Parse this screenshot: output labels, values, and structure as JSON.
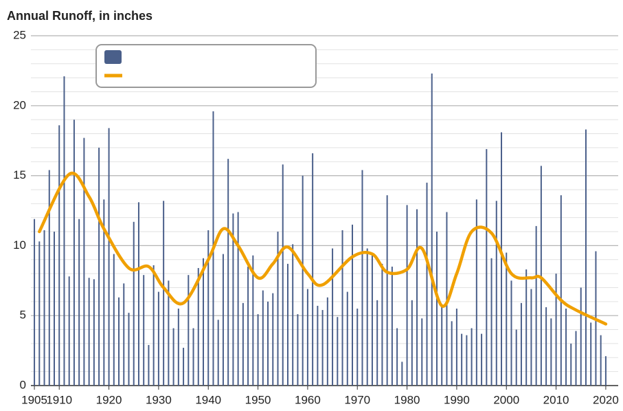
{
  "chart_data": {
    "type": "bar+line",
    "title": "Annual Runoff, in inches",
    "x": [
      1905,
      1906,
      1907,
      1908,
      1909,
      1910,
      1911,
      1912,
      1913,
      1914,
      1915,
      1916,
      1917,
      1918,
      1919,
      1920,
      1921,
      1922,
      1923,
      1924,
      1925,
      1926,
      1927,
      1928,
      1929,
      1930,
      1931,
      1932,
      1933,
      1934,
      1935,
      1936,
      1937,
      1938,
      1939,
      1940,
      1941,
      1942,
      1943,
      1944,
      1945,
      1946,
      1947,
      1948,
      1949,
      1950,
      1951,
      1952,
      1953,
      1954,
      1955,
      1956,
      1957,
      1958,
      1959,
      1960,
      1961,
      1962,
      1963,
      1964,
      1965,
      1966,
      1967,
      1968,
      1969,
      1970,
      1971,
      1972,
      1973,
      1974,
      1975,
      1976,
      1977,
      1978,
      1979,
      1980,
      1981,
      1982,
      1983,
      1984,
      1985,
      1986,
      1987,
      1988,
      1989,
      1990,
      1991,
      1992,
      1993,
      1994,
      1995,
      1996,
      1997,
      1998,
      1999,
      2000,
      2001,
      2002,
      2003,
      2004,
      2005,
      2006,
      2007,
      2008,
      2009,
      2010,
      2011,
      2012,
      2013,
      2014,
      2015,
      2016,
      2017,
      2018,
      2019,
      2020
    ],
    "series": [
      {
        "type": "bar",
        "color": "#4a5f8a",
        "values": [
          11.9,
          10.3,
          11.1,
          15.4,
          11.0,
          18.6,
          22.1,
          7.8,
          19.0,
          11.9,
          17.7,
          7.7,
          7.6,
          17.0,
          13.3,
          18.4,
          9.4,
          6.3,
          7.3,
          5.2,
          11.7,
          13.1,
          7.9,
          2.9,
          8.6,
          6.7,
          13.2,
          7.5,
          4.1,
          5.5,
          2.7,
          7.9,
          4.1,
          8.4,
          9.1,
          11.1,
          19.6,
          4.7,
          9.4,
          16.2,
          12.3,
          12.4,
          5.9,
          8.5,
          9.3,
          5.1,
          6.8,
          6.0,
          6.6,
          11.0,
          15.8,
          8.7,
          10.1,
          5.1,
          15.0,
          6.9,
          16.6,
          5.7,
          5.4,
          6.3,
          9.8,
          4.9,
          11.1,
          6.7,
          11.5,
          5.5,
          15.4,
          9.8,
          9.3,
          6.1,
          8.7,
          13.6,
          8.5,
          4.1,
          1.7,
          12.9,
          6.1,
          12.6,
          4.8,
          14.5,
          22.3,
          11.0,
          5.7,
          12.4,
          4.6,
          5.5,
          3.7,
          3.6,
          4.1,
          13.3,
          3.7,
          16.9,
          9.1,
          13.2,
          18.1,
          9.5,
          7.5,
          4.0,
          5.9,
          8.3,
          6.9,
          11.4,
          15.7,
          5.6,
          4.8,
          8.0,
          13.6,
          5.5,
          3.0,
          3.9,
          7.0,
          18.3,
          4.5,
          9.6,
          3.6,
          2.1
        ]
      },
      {
        "type": "line",
        "color": "#f0a000",
        "x": [
          1906,
          1912,
          1916,
          1919,
          1924,
          1928,
          1931,
          1935,
          1940,
          1943,
          1946,
          1950,
          1953,
          1956,
          1960,
          1963,
          1969,
          1973,
          1976,
          1980,
          1983,
          1987,
          1990,
          1993,
          1997,
          2001,
          2005,
          2007,
          2011,
          2014,
          2020
        ],
        "values": [
          11.0,
          15.1,
          13.5,
          11.2,
          8.4,
          8.5,
          7.0,
          5.9,
          9.0,
          11.2,
          10.0,
          7.7,
          8.7,
          9.9,
          8.0,
          7.2,
          9.2,
          9.4,
          8.1,
          8.3,
          9.8,
          5.7,
          8.0,
          11.0,
          10.9,
          8.0,
          7.7,
          7.7,
          6.1,
          5.4,
          4.4
        ]
      }
    ],
    "xlim": [
      1904.3,
      2022.5
    ],
    "xticks": [
      1905,
      1910,
      1920,
      1930,
      1940,
      1950,
      1960,
      1970,
      1980,
      1990,
      2000,
      2010,
      2020
    ],
    "ylim": [
      0,
      25
    ],
    "yticks": [
      0,
      5,
      10,
      15,
      20,
      25
    ],
    "grid": true,
    "minor_grid_step": 1
  }
}
